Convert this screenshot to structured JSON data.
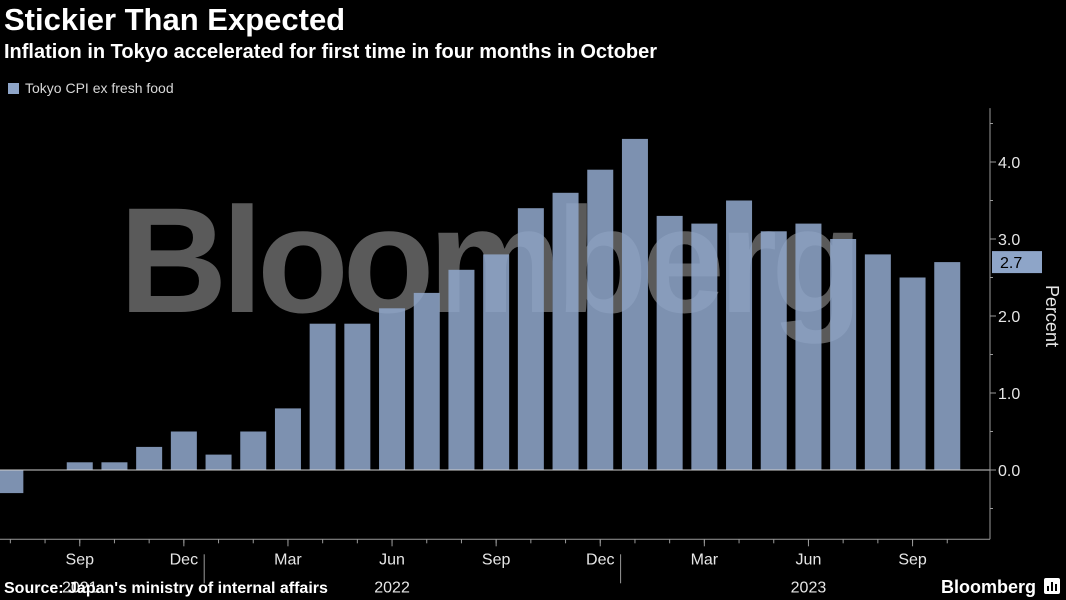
{
  "header": {
    "title": "Stickier Than Expected",
    "subtitle": "Inflation in Tokyo accelerated for first time in four months in October"
  },
  "legend": {
    "label": "Tokyo CPI ex fresh food"
  },
  "footer": {
    "source": "Source: Japan's ministry of internal affairs",
    "brand": "Bloomberg",
    "brand_icon": "bar-chart-icon"
  },
  "watermark": "Bloomberg",
  "colors": {
    "bar": "#8ea5c8",
    "background": "#000000",
    "axis": "#9a9a9a",
    "label_bg": "#8ea5c8"
  },
  "chart_data": {
    "type": "bar",
    "title": "Stickier Than Expected",
    "subtitle": "Inflation in Tokyo accelerated for first time in four months in October",
    "series": [
      {
        "name": "Tokyo CPI ex fresh food",
        "x": [
          "2021-07",
          "2021-08",
          "2021-09",
          "2021-10",
          "2021-11",
          "2021-12",
          "2022-01",
          "2022-02",
          "2022-03",
          "2022-04",
          "2022-05",
          "2022-06",
          "2022-07",
          "2022-08",
          "2022-09",
          "2022-10",
          "2022-11",
          "2022-12",
          "2023-01",
          "2023-02",
          "2023-03",
          "2023-04",
          "2023-05",
          "2023-06",
          "2023-07",
          "2023-08",
          "2023-09",
          "2023-10"
        ],
        "values": [
          -0.3,
          0.0,
          0.1,
          0.1,
          0.3,
          0.5,
          0.2,
          0.5,
          0.8,
          1.9,
          1.9,
          2.1,
          2.3,
          2.6,
          2.8,
          3.4,
          3.6,
          3.9,
          4.3,
          3.3,
          3.2,
          3.5,
          3.1,
          3.2,
          3.0,
          2.8,
          2.5,
          2.7
        ]
      }
    ],
    "ylabel": "Percent",
    "ylim": [
      -0.9,
      4.7
    ],
    "yticks": [
      "0.0",
      "1.0",
      "2.0",
      "3.0",
      "4.0"
    ],
    "ytick_values": [
      0,
      1,
      2,
      3,
      4
    ],
    "xtick_labels": [
      {
        "month": "2021-09",
        "label": "Sep"
      },
      {
        "month": "2021-12",
        "label": "Dec"
      },
      {
        "month": "2022-03",
        "label": "Mar"
      },
      {
        "month": "2022-06",
        "label": "Jun"
      },
      {
        "month": "2022-09",
        "label": "Sep"
      },
      {
        "month": "2022-12",
        "label": "Dec"
      },
      {
        "month": "2023-03",
        "label": "Mar"
      },
      {
        "month": "2023-06",
        "label": "Jun"
      },
      {
        "month": "2023-09",
        "label": "Sep"
      }
    ],
    "years": [
      {
        "month": "2021-09",
        "label": "2021"
      },
      {
        "month": "2022-06",
        "label": "2022"
      },
      {
        "month": "2023-06",
        "label": "2023"
      }
    ],
    "year_dividers": [
      "2021-12",
      "2022-12"
    ],
    "last_value_label": "2.7",
    "grid": false,
    "y_axis_side": "right",
    "legend_position": "top-left"
  }
}
